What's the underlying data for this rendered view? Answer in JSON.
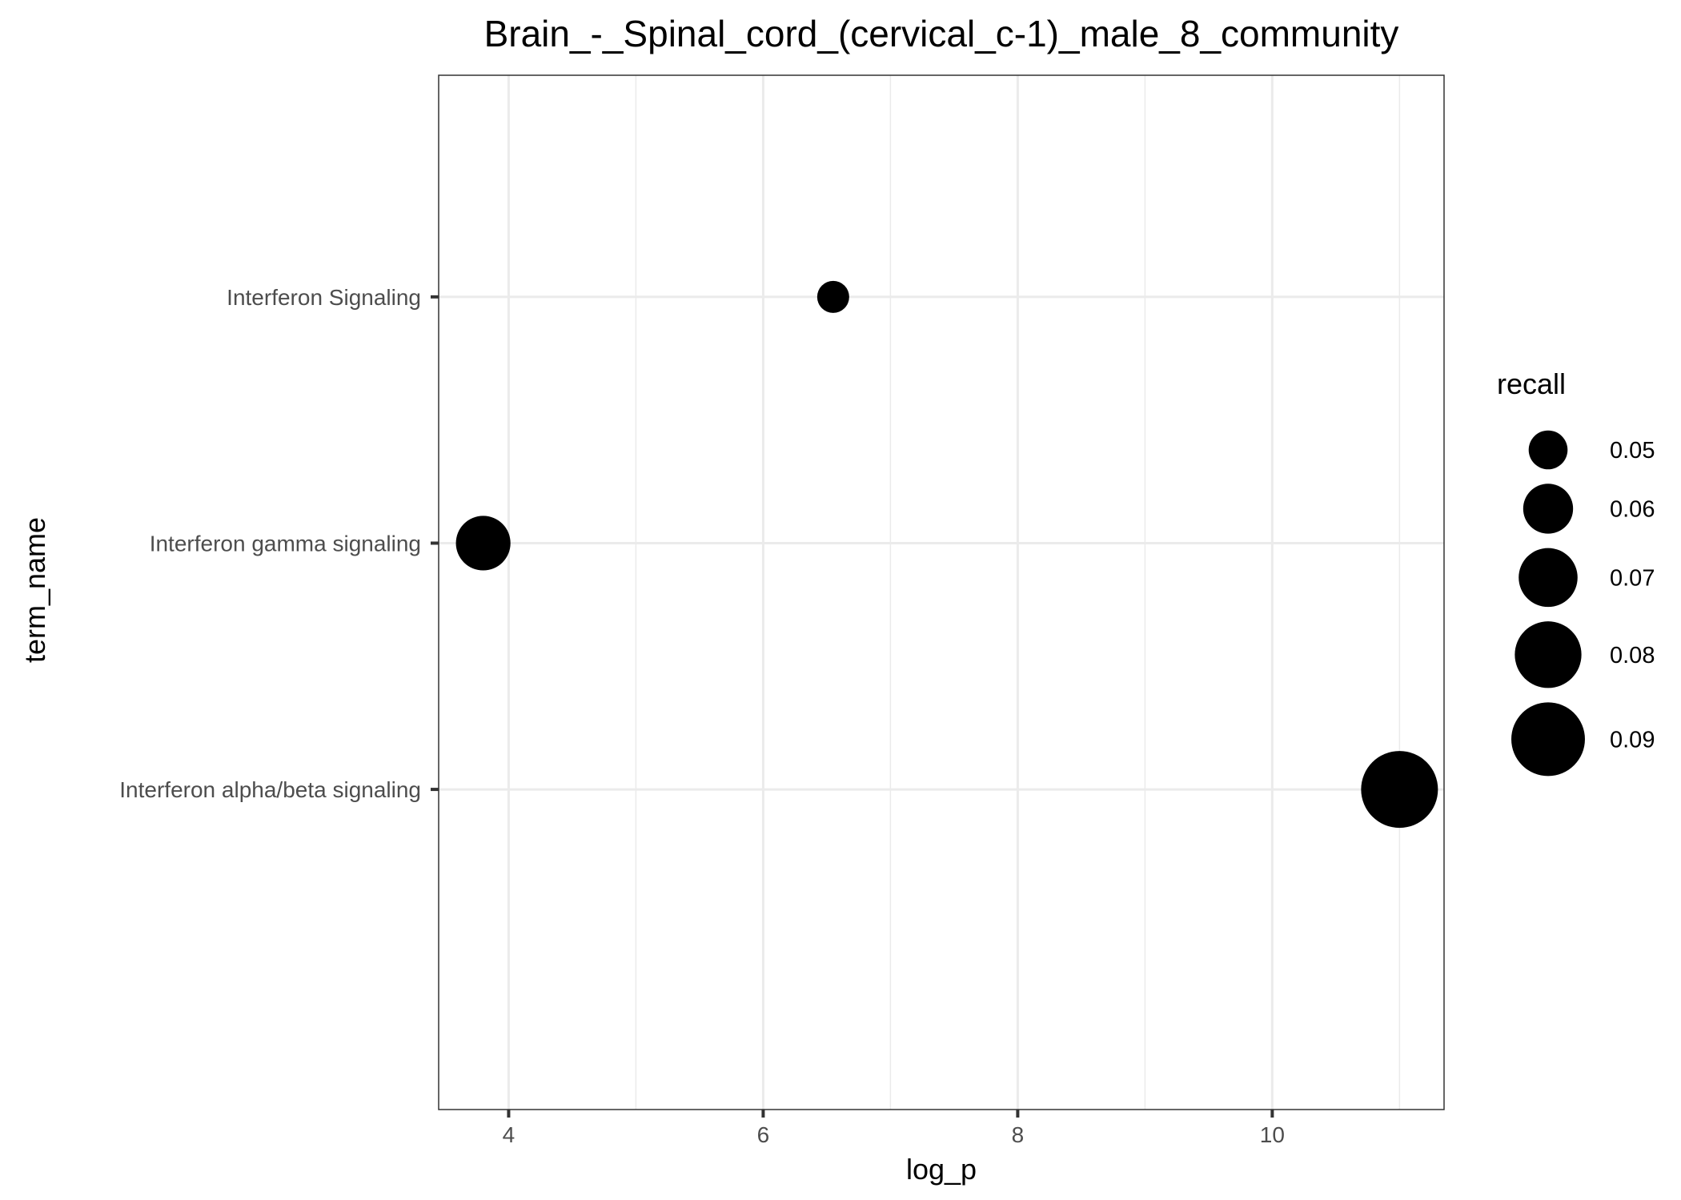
{
  "chart_data": {
    "type": "scatter",
    "title": "Brain_-_Spinal_cord_(cervical_c-1)_male_8_community",
    "xlabel": "log_p",
    "ylabel": "term_name",
    "xlim": [
      3.45,
      11.35
    ],
    "x_ticks": [
      4,
      6,
      8,
      10
    ],
    "x_minor_ticks": [
      5,
      7,
      9,
      11
    ],
    "categories": [
      "Interferon Signaling",
      "Interferon gamma signaling",
      "Interferon alpha/beta signaling"
    ],
    "points": [
      {
        "term_name": "Interferon Signaling",
        "log_p": 6.55,
        "recall": 0.045
      },
      {
        "term_name": "Interferon gamma signaling",
        "log_p": 3.8,
        "recall": 0.065
      },
      {
        "term_name": "Interferon alpha/beta signaling",
        "log_p": 11.0,
        "recall": 0.095
      }
    ],
    "size_legend": {
      "title": "recall",
      "values": [
        0.05,
        0.06,
        0.07,
        0.08,
        0.09
      ],
      "labels": [
        "0.05",
        "0.06",
        "0.07",
        "0.08",
        "0.09"
      ],
      "range": [
        0.045,
        0.095
      ]
    },
    "grid": true,
    "legend_position": "right",
    "point_color": "#000000"
  }
}
